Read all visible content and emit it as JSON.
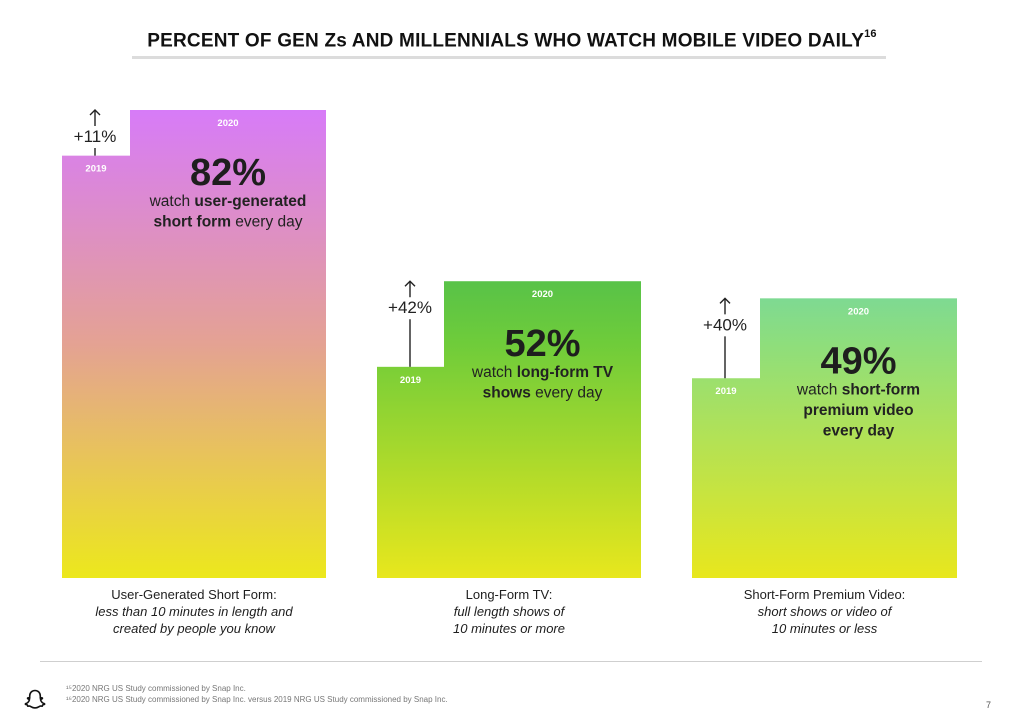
{
  "title": "PERCENT OF GEN Zs AND MILLENNIALS WHO WATCH MOBILE VIDEO DAILY",
  "title_sup": "16",
  "chart_data": {
    "type": "bar",
    "title": "PERCENT OF GEN Zs AND MILLENNIALS WHO WATCH MOBILE VIDEO DAILY",
    "categories": [
      "User-Generated Short Form",
      "Long-Form TV",
      "Short-Form Premium Video"
    ],
    "series": [
      {
        "name": "2019",
        "values": [
          74,
          37,
          35
        ]
      },
      {
        "name": "2020",
        "values": [
          82,
          52,
          49
        ]
      }
    ],
    "ylim": [
      0,
      82
    ],
    "grid": false,
    "legend": "none",
    "groups": [
      {
        "year_2019_label": "2019",
        "year_2020_label": "2020",
        "value_2020_label": "82%",
        "change_label": "+11%",
        "desc_lines": [
          [
            "watch ",
            "user-generated"
          ],
          [
            "short form",
            " every day"
          ]
        ],
        "cat_label": "User-Generated Short Form:",
        "cat_sub": [
          "less than 10 minutes in length and",
          "created by people you know"
        ],
        "colors": {
          "top": "#d77bf8",
          "mid": "#e4a293",
          "bottom": "#ece81c"
        }
      },
      {
        "year_2019_label": "2019",
        "year_2020_label": "2020",
        "value_2020_label": "52%",
        "change_label": "+42%",
        "desc_lines": [
          [
            "watch ",
            "long-form TV"
          ],
          [
            "shows",
            " every day"
          ]
        ],
        "cat_label": "Long-Form TV:",
        "cat_sub": [
          "full length shows of",
          "10 minutes or more"
        ],
        "colors": {
          "top": "#19a86e",
          "mid": "#6fcc3a",
          "bottom": "#e8e71d"
        }
      },
      {
        "year_2019_label": "2019",
        "year_2020_label": "2020",
        "value_2020_label": "49%",
        "change_label": "+40%",
        "desc_lines": [
          [
            "watch ",
            "short-form"
          ],
          [
            "premium video",
            ""
          ],
          [
            "every day",
            ""
          ]
        ],
        "cat_label": "Short-Form Premium Video:",
        "cat_sub": [
          "short shows or video of",
          "10 minutes or less"
        ],
        "colors": {
          "top": "#3cc7ee",
          "mid": "#8ede7c",
          "bottom": "#e8e71d"
        }
      }
    ]
  },
  "footnotes": [
    "¹⁵2020 NRG US Study commissioned by Snap Inc.",
    "¹⁶2020 NRG US Study commissioned by Snap Inc. versus 2019 NRG US Study commissioned by Snap Inc."
  ],
  "page_number": "7",
  "logo_icon": "snapchat-ghost-icon"
}
